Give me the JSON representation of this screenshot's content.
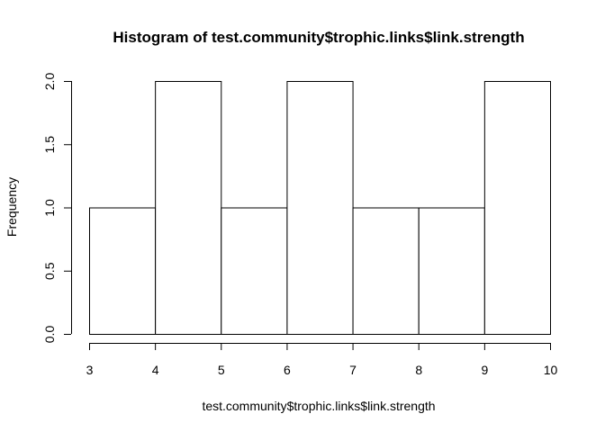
{
  "chart_data": {
    "type": "bar",
    "title": "Histogram of test.community$trophic.links$link.strength",
    "xlabel": "test.community$trophic.links$link.strength",
    "ylabel": "Frequency",
    "bins": [
      {
        "x0": 3,
        "x1": 4,
        "count": 1
      },
      {
        "x0": 4,
        "x1": 5,
        "count": 2
      },
      {
        "x0": 5,
        "x1": 6,
        "count": 1
      },
      {
        "x0": 6,
        "x1": 7,
        "count": 2
      },
      {
        "x0": 7,
        "x1": 8,
        "count": 1
      },
      {
        "x0": 8,
        "x1": 9,
        "count": 1
      },
      {
        "x0": 9,
        "x1": 10,
        "count": 2
      }
    ],
    "xlim": [
      3,
      10
    ],
    "ylim": [
      0,
      2
    ],
    "x_ticks": [
      3,
      4,
      5,
      6,
      7,
      8,
      9,
      10
    ],
    "x_tick_labels": [
      "3",
      "4",
      "5",
      "6",
      "7",
      "8",
      "9",
      "10"
    ],
    "y_ticks": [
      0,
      0.5,
      1,
      1.5,
      2
    ],
    "y_tick_labels": [
      "0.0",
      "0.5",
      "1.0",
      "1.5",
      "2.0"
    ],
    "grid": false,
    "legend": "none"
  }
}
